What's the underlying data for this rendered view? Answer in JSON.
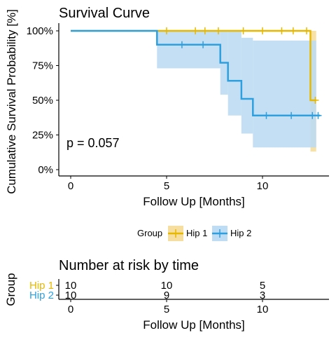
{
  "chart_data": [
    {
      "type": "line",
      "subtype": "kaplan-meier",
      "title": "Survival Curve",
      "xlabel": "Follow Up [Months]",
      "ylabel": "Cumulative Survival Probability [%]",
      "xlim": [
        -1,
        13.5
      ],
      "ylim": [
        0,
        1
      ],
      "xticks": [
        0,
        5,
        10
      ],
      "xtick_labels": [
        "0",
        "5",
        "10"
      ],
      "yticks": [
        0,
        0.25,
        0.5,
        0.75,
        1
      ],
      "ytick_labels": [
        "0%",
        "25%",
        "50%",
        "75%",
        "100%"
      ],
      "annotation": "p = 0.057",
      "legend": {
        "title": "Group",
        "position": "bottom",
        "entries": [
          "Hip 1",
          "Hip 2"
        ]
      },
      "series": [
        {
          "name": "Hip 1",
          "color": "#E7B800",
          "ci_color": "#F5DEA0",
          "steps": [
            [
              0,
              1.0
            ],
            [
              12.5,
              0.5
            ]
          ],
          "end_x": 12.8,
          "ci": [
            {
              "x0": 12.5,
              "x1": 12.8,
              "lo": 0.13,
              "hi": 1.0
            }
          ],
          "censor_x": [
            5,
            6.5,
            7.0,
            7.7,
            9.0,
            10.0,
            11.0,
            11.6,
            12.3
          ],
          "censor_end_x": 12.75
        },
        {
          "name": "Hip 2",
          "color": "#2E9FDF",
          "ci_color": "#BEDCF3",
          "steps": [
            [
              0,
              1.0
            ],
            [
              4.5,
              0.9
            ],
            [
              7.8,
              0.77
            ],
            [
              8.2,
              0.64
            ],
            [
              8.9,
              0.51
            ],
            [
              9.5,
              0.39
            ]
          ],
          "end_x": 13.0,
          "ci": [
            {
              "x0": 4.5,
              "x1": 7.8,
              "lo": 0.73,
              "hi": 1.0
            },
            {
              "x0": 7.8,
              "x1": 8.2,
              "lo": 0.54,
              "hi": 1.0
            },
            {
              "x0": 8.2,
              "x1": 8.9,
              "lo": 0.39,
              "hi": 1.0
            },
            {
              "x0": 8.9,
              "x1": 9.5,
              "lo": 0.26,
              "hi": 0.95
            },
            {
              "x0": 9.5,
              "x1": 12.8,
              "lo": 0.16,
              "hi": 0.93
            }
          ],
          "censor_x": [
            5.8,
            6.9,
            10.2,
            11.5,
            12.6
          ],
          "censor_end_x": 12.9
        }
      ]
    },
    {
      "type": "table",
      "title": "Number at risk by time",
      "xlabel": "Follow Up [Months]",
      "ylabel": "Group",
      "xticks": [
        0,
        5,
        10
      ],
      "xtick_labels": [
        "0",
        "5",
        "10"
      ],
      "rows": [
        {
          "name": "Hip 1",
          "color": "#E7B800",
          "values": [
            "10",
            "10",
            "5"
          ]
        },
        {
          "name": "Hip 2",
          "color": "#2E9FDF",
          "values": [
            "10",
            "9",
            "3"
          ]
        }
      ]
    }
  ]
}
